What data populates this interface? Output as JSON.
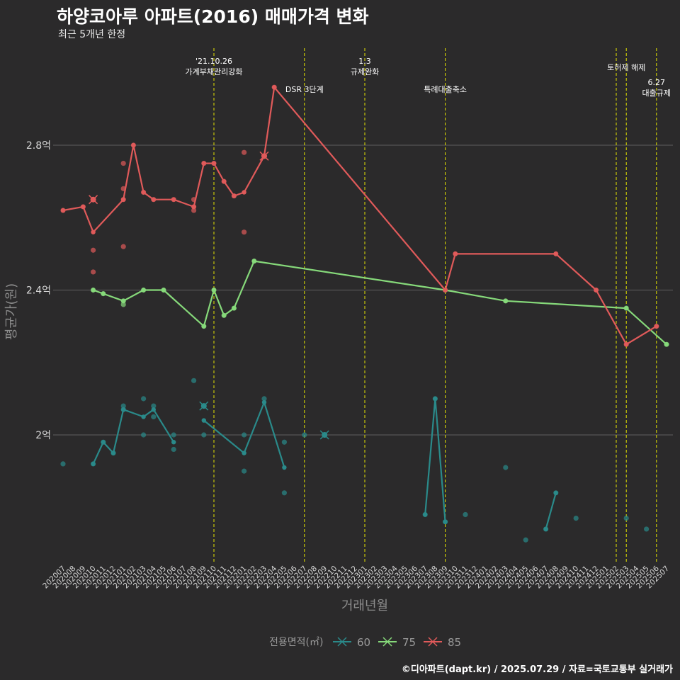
{
  "header": {
    "title": "하양코아루 아파트(2016) 매매가격 변화",
    "subtitle": "최근 5개년 한정"
  },
  "caption": "©디아파트(dapt.kr) / 2025.07.29 / 자료=국토교통부 실거래가",
  "colors": {
    "background": "#2b2a2b",
    "grid": "#5f5f5f",
    "event_line": "#e4e400",
    "s60": "#2a8a8a",
    "s75": "#86d97a",
    "s85": "#e05a5a"
  },
  "chart_data": {
    "type": "line",
    "xlabel": "거래년월",
    "ylabel": "평균가(원)",
    "x_categories": [
      "202007",
      "202008",
      "202009",
      "202010",
      "202011",
      "202012",
      "202101",
      "202102",
      "202103",
      "202104",
      "202105",
      "202106",
      "202107",
      "202108",
      "202109",
      "202110",
      "202111",
      "202112",
      "202201",
      "202202",
      "202203",
      "202204",
      "202205",
      "202206",
      "202207",
      "202208",
      "202209",
      "202210",
      "202211",
      "202212",
      "202301",
      "202302",
      "202303",
      "202304",
      "202305",
      "202306",
      "202307",
      "202308",
      "202309",
      "202310",
      "202311",
      "202312",
      "202401",
      "202402",
      "202403",
      "202404",
      "202405",
      "202406",
      "202407",
      "202408",
      "202409",
      "202410",
      "202411",
      "202412",
      "202501",
      "202502",
      "202503",
      "202504",
      "202505",
      "202506",
      "202507"
    ],
    "y_ticks": [
      {
        "value": 2.0,
        "label": "2억"
      },
      {
        "value": 2.4,
        "label": "2.4억"
      },
      {
        "value": 2.8,
        "label": "2.8억"
      }
    ],
    "y_range": [
      1.65,
      3.2
    ],
    "grid": true,
    "legend_title": "전용면적(㎡)",
    "legend_position": "bottom",
    "series": [
      {
        "name": "60",
        "color": "#2a8a8a",
        "line_segments": [
          [
            [
              "202010",
              1.92
            ],
            [
              "202011",
              1.98
            ],
            [
              "202012",
              1.95
            ],
            [
              "202101",
              2.07
            ],
            [
              "202103",
              2.05
            ],
            [
              "202104",
              2.07
            ],
            [
              "202106",
              1.98
            ]
          ],
          [
            [
              "202109",
              2.04
            ],
            [
              "202201",
              1.95
            ],
            [
              "202203",
              2.09
            ],
            [
              "202205",
              1.91
            ]
          ],
          [
            [
              "202307",
              1.78
            ],
            [
              "202308",
              2.1
            ],
            [
              "202309",
              1.76
            ]
          ],
          [
            [
              "202407",
              1.74
            ],
            [
              "202408",
              1.84
            ]
          ]
        ],
        "points": [
          [
            "202007",
            1.92
          ],
          [
            "202010",
            1.92
          ],
          [
            "202011",
            1.98
          ],
          [
            "202012",
            1.95
          ],
          [
            "202101",
            2.07
          ],
          [
            "202101",
            2.08
          ],
          [
            "202103",
            2.1
          ],
          [
            "202103",
            2.0
          ],
          [
            "202104",
            2.08
          ],
          [
            "202104",
            2.05
          ],
          [
            "202106",
            2.0
          ],
          [
            "202106",
            1.96
          ],
          [
            "202108",
            2.15
          ],
          [
            "202109",
            2.0
          ],
          [
            "202109",
            2.08
          ],
          [
            "202201",
            2.0
          ],
          [
            "202201",
            1.9
          ],
          [
            "202203",
            2.1
          ],
          [
            "202205",
            1.98
          ],
          [
            "202205",
            1.84
          ],
          [
            "202207",
            2.0
          ],
          [
            "202307",
            1.78
          ],
          [
            "202308",
            2.1
          ],
          [
            "202309",
            1.76
          ],
          [
            "202311",
            1.78
          ],
          [
            "202403",
            1.91
          ],
          [
            "202405",
            1.71
          ],
          [
            "202407",
            1.74
          ],
          [
            "202408",
            1.84
          ],
          [
            "202410",
            1.77
          ],
          [
            "202503",
            1.77
          ],
          [
            "202505",
            1.74
          ]
        ],
        "cancelled_points": [
          [
            "202109",
            2.08
          ],
          [
            "202209",
            2.0
          ]
        ]
      },
      {
        "name": "75",
        "color": "#86d97a",
        "line_segments": [
          [
            [
              "202010",
              2.4
            ],
            [
              "202011",
              2.39
            ],
            [
              "202101",
              2.37
            ],
            [
              "202103",
              2.4
            ],
            [
              "202105",
              2.4
            ],
            [
              "202109",
              2.3
            ],
            [
              "202110",
              2.4
            ],
            [
              "202111",
              2.33
            ],
            [
              "202112",
              2.35
            ],
            [
              "202202",
              2.48
            ],
            [
              "202309",
              2.4
            ],
            [
              "202403",
              2.37
            ],
            [
              "202503",
              2.35
            ],
            [
              "202507",
              2.25
            ]
          ]
        ],
        "points": [
          [
            "202010",
            2.4
          ],
          [
            "202011",
            2.39
          ],
          [
            "202101",
            2.37
          ],
          [
            "202101",
            2.36
          ],
          [
            "202103",
            2.4
          ],
          [
            "202105",
            2.4
          ],
          [
            "202109",
            2.3
          ],
          [
            "202110",
            2.4
          ],
          [
            "202111",
            2.33
          ],
          [
            "202112",
            2.35
          ],
          [
            "202202",
            2.48
          ],
          [
            "202309",
            2.4
          ],
          [
            "202403",
            2.37
          ],
          [
            "202503",
            2.35
          ],
          [
            "202507",
            2.25
          ]
        ],
        "cancelled_points": []
      },
      {
        "name": "85",
        "color": "#e05a5a",
        "line_segments": [
          [
            [
              "202007",
              2.62
            ],
            [
              "202009",
              2.63
            ],
            [
              "202010",
              2.56
            ],
            [
              "202101",
              2.65
            ],
            [
              "202102",
              2.8
            ],
            [
              "202103",
              2.67
            ],
            [
              "202104",
              2.65
            ],
            [
              "202106",
              2.65
            ],
            [
              "202108",
              2.63
            ],
            [
              "202109",
              2.75
            ],
            [
              "202110",
              2.75
            ],
            [
              "202111",
              2.7
            ],
            [
              "202112",
              2.66
            ],
            [
              "202201",
              2.67
            ],
            [
              "202203",
              2.77
            ],
            [
              "202204",
              2.96
            ],
            [
              "202309",
              2.4
            ],
            [
              "202310",
              2.5
            ],
            [
              "202408",
              2.5
            ],
            [
              "202412",
              2.4
            ],
            [
              "202503",
              2.25
            ],
            [
              "202506",
              2.3
            ]
          ]
        ],
        "points": [
          [
            "202007",
            2.62
          ],
          [
            "202009",
            2.63
          ],
          [
            "202010",
            2.51
          ],
          [
            "202010",
            2.45
          ],
          [
            "202010",
            2.65
          ],
          [
            "202101",
            2.75
          ],
          [
            "202101",
            2.68
          ],
          [
            "202101",
            2.52
          ],
          [
            "202101",
            2.65
          ],
          [
            "202102",
            2.8
          ],
          [
            "202103",
            2.67
          ],
          [
            "202104",
            2.65
          ],
          [
            "202106",
            2.65
          ],
          [
            "202108",
            2.65
          ],
          [
            "202108",
            2.63
          ],
          [
            "202108",
            2.62
          ],
          [
            "202109",
            2.75
          ],
          [
            "202110",
            2.75
          ],
          [
            "202111",
            2.7
          ],
          [
            "202112",
            2.66
          ],
          [
            "202201",
            2.78
          ],
          [
            "202201",
            2.56
          ],
          [
            "202203",
            2.77
          ],
          [
            "202204",
            2.96
          ],
          [
            "202309",
            2.4
          ],
          [
            "202310",
            2.5
          ],
          [
            "202408",
            2.5
          ],
          [
            "202412",
            2.4
          ],
          [
            "202503",
            2.25
          ],
          [
            "202506",
            2.3
          ]
        ],
        "cancelled_points": [
          [
            "202010",
            2.65
          ],
          [
            "202203",
            2.77
          ]
        ]
      }
    ],
    "events": [
      {
        "x": "202110",
        "lines": [
          "'21.10.26",
          "가계부채관리강화"
        ]
      },
      {
        "x": "202207",
        "lines": [
          "DSR 3단계"
        ]
      },
      {
        "x": "202301",
        "lines": [
          "1.3",
          "규제완화"
        ]
      },
      {
        "x": "202309",
        "lines": [
          "특례대출축소"
        ]
      },
      {
        "x": "202502",
        "lines": []
      },
      {
        "x": "202503",
        "lines": [
          "토허제 해제"
        ]
      },
      {
        "x": "202506",
        "lines": [
          "6.27",
          "대출규제"
        ]
      }
    ]
  }
}
